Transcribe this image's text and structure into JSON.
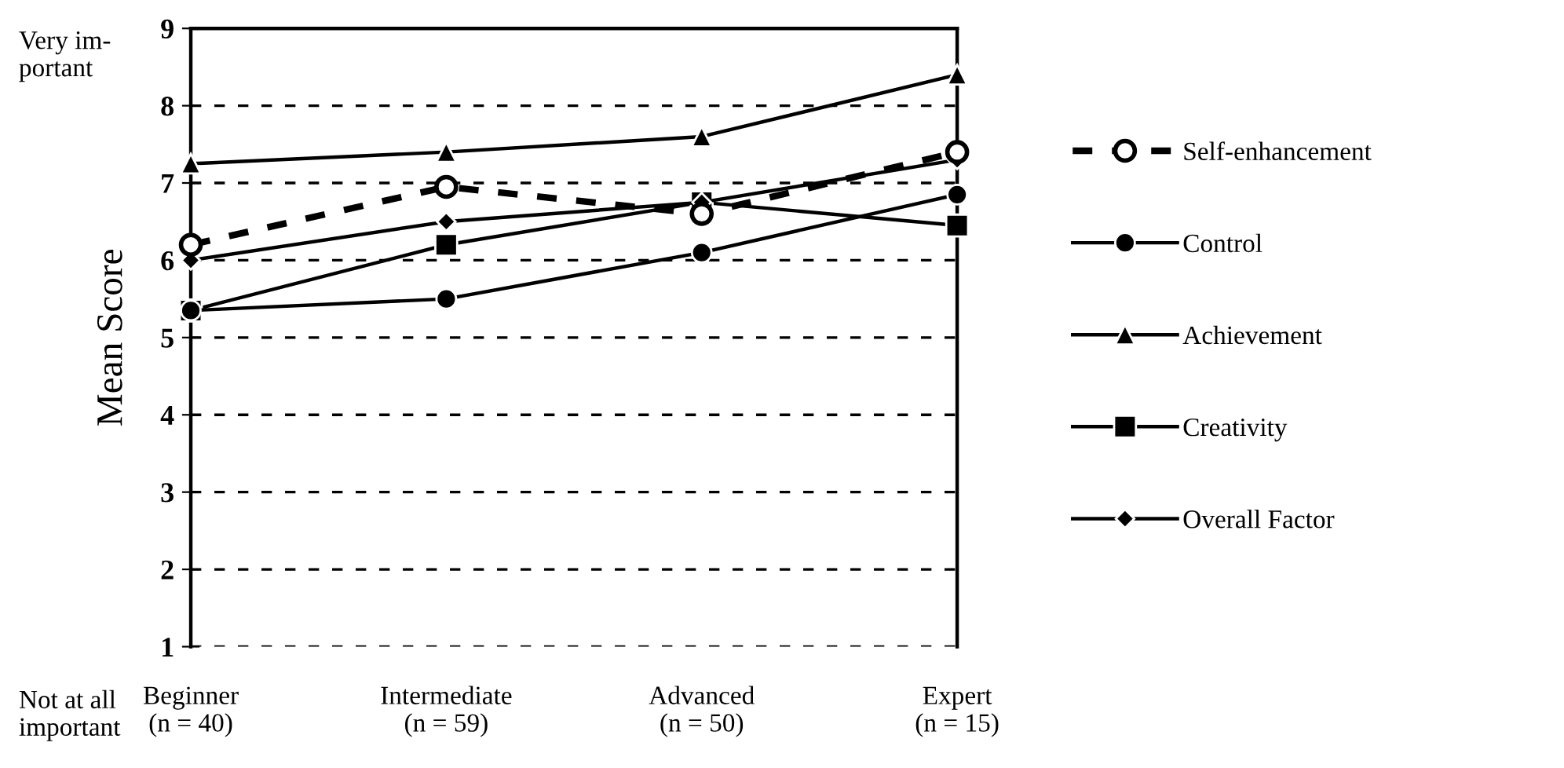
{
  "chart_data": {
    "type": "line",
    "ylabel": "Mean Score",
    "categories": [
      "Beginner\n(n = 40)",
      "Intermediate\n(n = 59)",
      "Advanced\n(n = 50)",
      "Expert\n(n = 15)"
    ],
    "ylim": [
      1,
      9
    ],
    "yticks": [
      1,
      2,
      3,
      4,
      5,
      6,
      7,
      8,
      9
    ],
    "grid": "y",
    "legend": "right",
    "annotations": [
      "Very im-\nportant",
      "Not at all\nimportant"
    ],
    "series": [
      {
        "name": "Self-enhancement",
        "color": "#000000",
        "marker": "circle",
        "line_style": "dashed",
        "values": [
          6.2,
          6.95,
          6.6,
          7.4
        ]
      },
      {
        "name": "Control",
        "color": "#000000",
        "marker": "circle",
        "line_style": "solid",
        "values": [
          5.35,
          5.5,
          6.1,
          6.85
        ]
      },
      {
        "name": "Achievement",
        "color": "#000000",
        "marker": "triangle",
        "line_style": "solid",
        "values": [
          7.25,
          7.4,
          7.6,
          8.4
        ]
      },
      {
        "name": "Creativity",
        "color": "#000000",
        "marker": "square",
        "line_style": "solid",
        "values": [
          5.35,
          6.2,
          6.75,
          6.45
        ]
      },
      {
        "name": "Overall Factor",
        "color": "#000000",
        "marker": "diamond",
        "line_style": "solid",
        "values": [
          6.0,
          6.5,
          6.75,
          7.3
        ]
      }
    ]
  }
}
